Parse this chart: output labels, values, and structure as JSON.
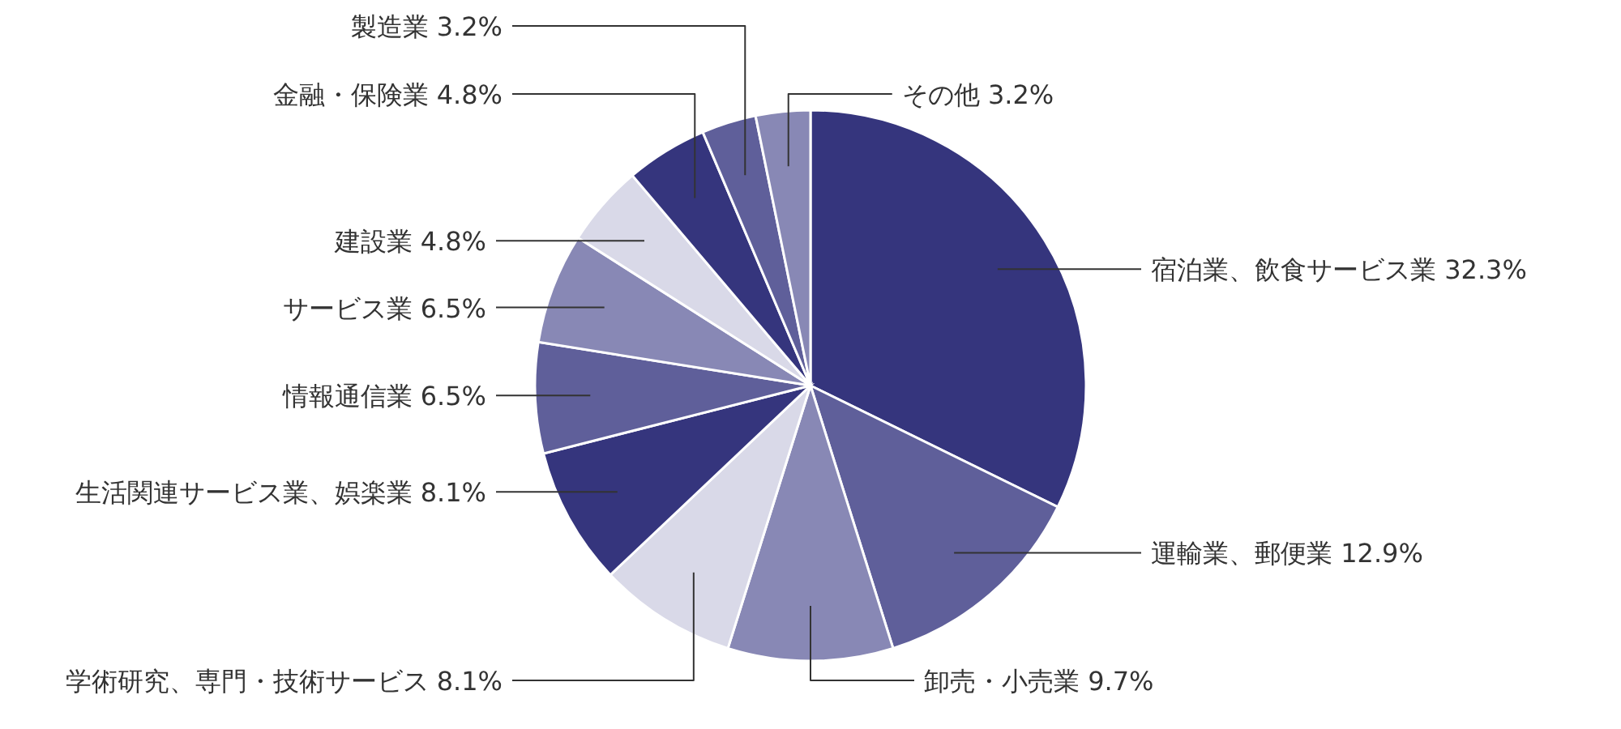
{
  "chart_data": {
    "type": "pie",
    "categories": [
      "宿泊業、飲食サービス業",
      "運輸業、郵便業",
      "卸売・小売業",
      "学術研究、専門・技術サービス",
      "生活関連サービス業、娯楽業",
      "情報通信業",
      "サービス業",
      "建設業",
      "金融・保険業",
      "製造業",
      "その他"
    ],
    "values": [
      32.3,
      12.9,
      9.7,
      8.1,
      8.1,
      6.5,
      6.5,
      4.8,
      4.8,
      3.2,
      3.2
    ],
    "colors": [
      "#35357d",
      "#5f5f9a",
      "#8888b5",
      "#d9d9e8",
      "#35357d",
      "#5f5f9a",
      "#8888b5",
      "#d9d9e8",
      "#35357d",
      "#5f5f9a",
      "#8888b5"
    ],
    "value_labels": [
      "32.3%",
      "12.9%",
      "9.7%",
      "8.1%",
      "8.1%",
      "6.5%",
      "6.5%",
      "4.8%",
      "4.8%",
      "3.2%",
      "3.2%"
    ]
  }
}
